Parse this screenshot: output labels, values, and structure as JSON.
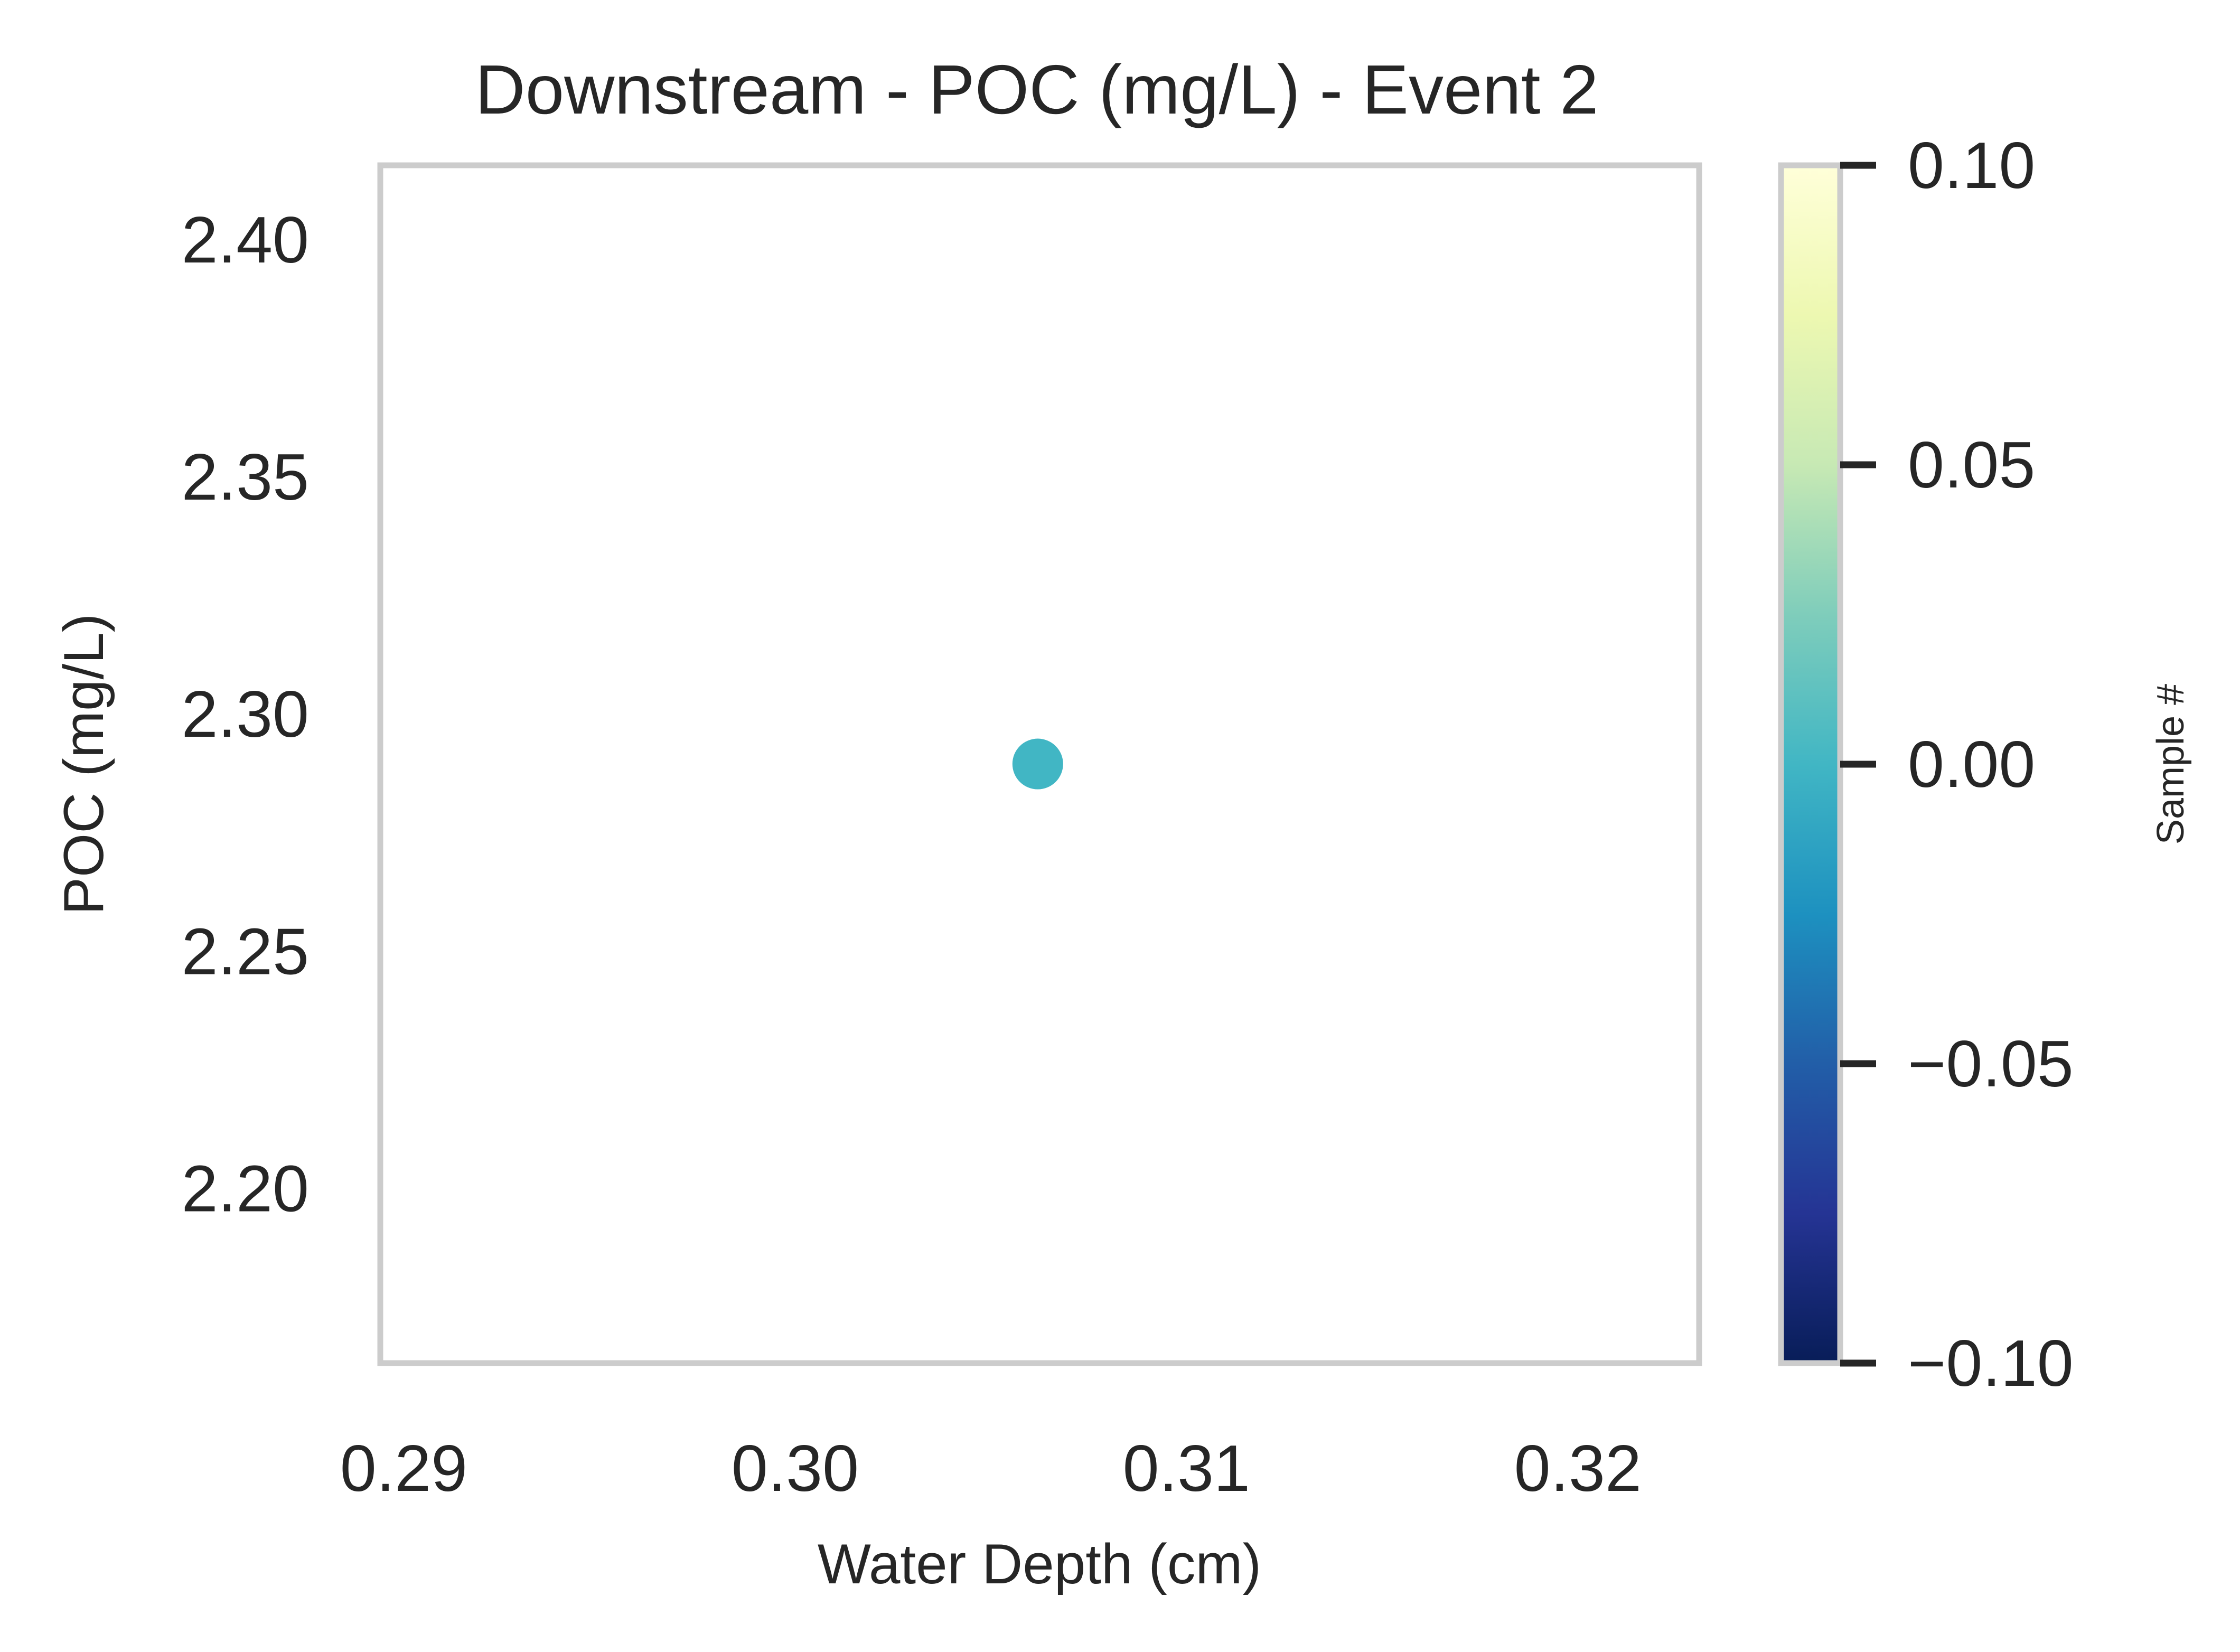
{
  "chart_data": {
    "type": "scatter",
    "title": "Downstream - POC (mg/L) - Event 2",
    "xlabel": "Water Depth (cm)",
    "ylabel": "POC (mg/L)",
    "xlim": [
      0.2894,
      0.3231
    ],
    "ylim": [
      2.1632,
      2.4157
    ],
    "xticks": [
      "0.29",
      "0.30",
      "0.31",
      "0.32"
    ],
    "xtick_values": [
      0.29,
      0.3,
      0.31,
      0.32
    ],
    "yticks": [
      "2.20",
      "2.25",
      "2.30",
      "2.35",
      "2.40"
    ],
    "ytick_values": [
      2.2,
      2.25,
      2.3,
      2.35,
      2.4
    ],
    "grid": false,
    "points": [
      {
        "x": 0.3062,
        "y": 2.2895,
        "c": 0.0
      }
    ],
    "point_color": "#41b6c4",
    "colorbar": {
      "label": "Sample #",
      "colormap": "YlGnBu",
      "lim": [
        -0.1,
        0.1
      ],
      "ticks": [
        "−0.10",
        "−0.05",
        "0.00",
        "0.05",
        "0.10"
      ],
      "tick_values": [
        -0.1,
        -0.05,
        0.0,
        0.05,
        0.1
      ],
      "stops": [
        "#ffffd9",
        "#edf8b1",
        "#c7e9b4",
        "#7fcdbb",
        "#41b6c4",
        "#1d91c0",
        "#225ea8",
        "#253494",
        "#081d58"
      ]
    },
    "frame_color": "#cccccc",
    "text_color": "#262626"
  }
}
